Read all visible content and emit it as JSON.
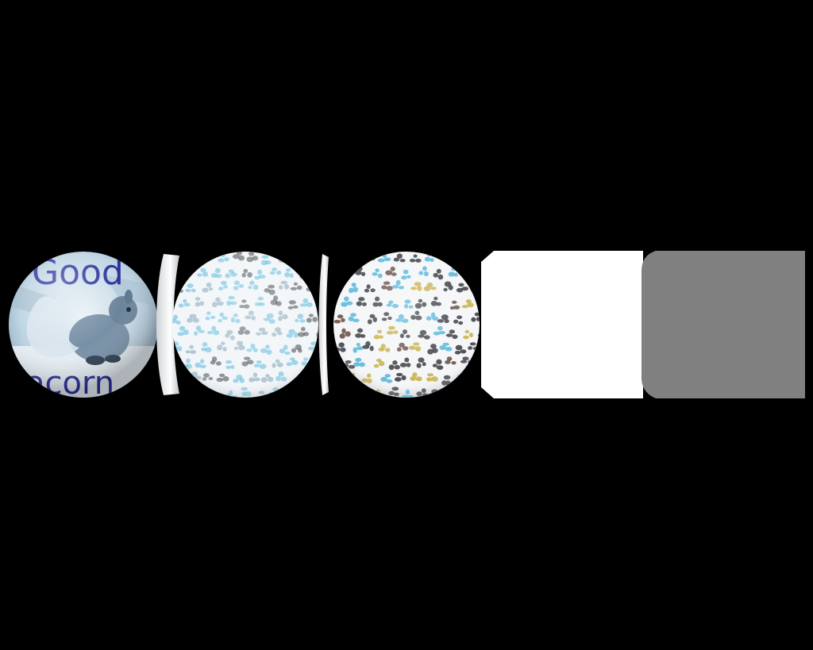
{
  "viewer": {
    "background": "#000000",
    "items": [
      {
        "kind": "image-sphere",
        "content": "squirrel-photo",
        "caption_top": "Good",
        "caption_bottom": "acorn",
        "caption_color": "#2a2f9c"
      },
      {
        "kind": "image-sphere",
        "content": "leopard-print-faded"
      },
      {
        "kind": "image-sphere",
        "content": "leopard-print"
      },
      {
        "kind": "blank-tile",
        "fill": "#ffffff"
      },
      {
        "kind": "blank-tile",
        "fill": "#808080"
      }
    ],
    "colors": {
      "spot_dark": "#3e4046",
      "spot_blue": "#59b8dc",
      "spot_gold": "#c9b24c",
      "white_tile": "#ffffff",
      "gray_tile": "#808080"
    }
  }
}
